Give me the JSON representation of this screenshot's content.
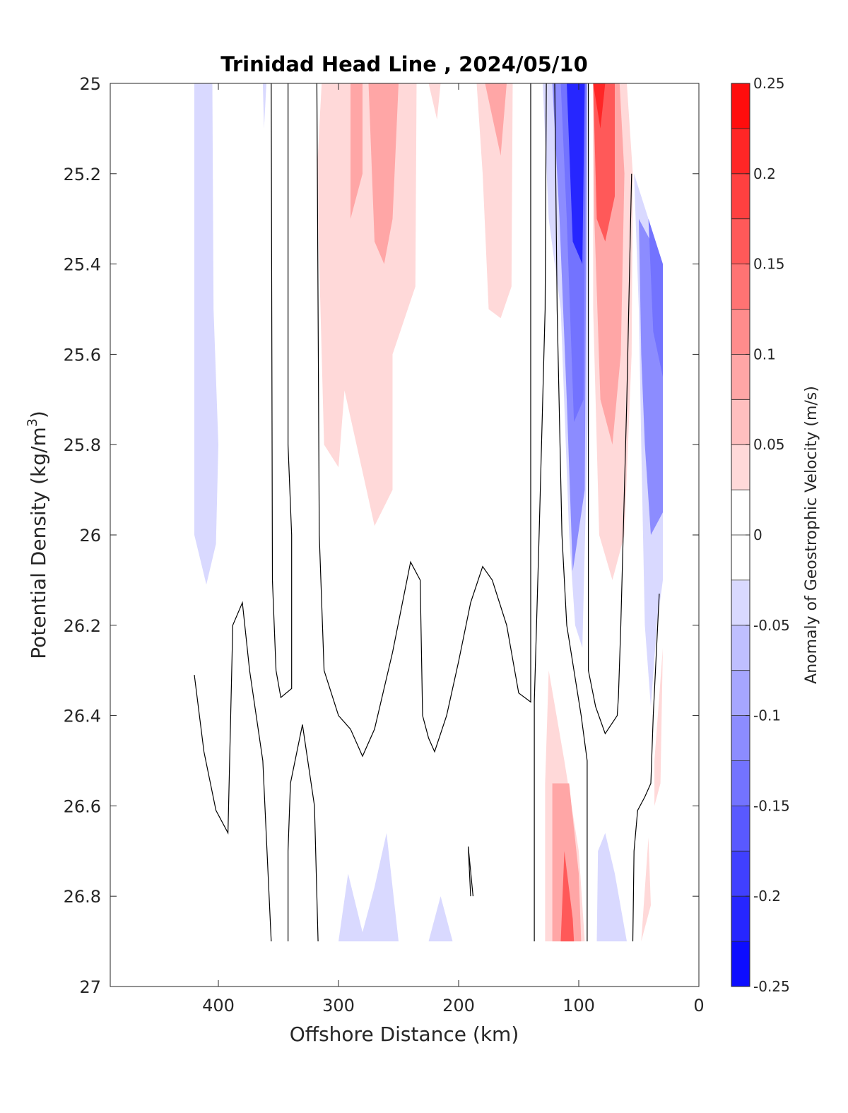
{
  "chart_data": {
    "type": "heatmap",
    "title": "Trinidad Head Line , 2024/05/10",
    "xlabel": "Offshore Distance (km)",
    "ylabel": "Potential Density (kg/m^3)",
    "ylabel_main": "Potential Density (kg/m",
    "ylabel_sup": "3",
    "ylabel_close": ")",
    "xlim": [
      490,
      0
    ],
    "ylim": [
      25,
      27
    ],
    "x_reversed": true,
    "y_reversed": true,
    "x_ticks": [
      400,
      300,
      200,
      100,
      0
    ],
    "x_tick_labels": [
      "400",
      "300",
      "200",
      "100",
      "0"
    ],
    "y_ticks": [
      25,
      25.2,
      25.4,
      25.6,
      25.8,
      26,
      26.2,
      26.4,
      26.6,
      26.8,
      27
    ],
    "y_tick_labels": [
      "25",
      "25.2",
      "25.4",
      "25.6",
      "25.8",
      "26",
      "26.2",
      "26.4",
      "26.6",
      "26.8",
      "27"
    ],
    "grid": false,
    "colorbar": {
      "label": "Anomaly of Geostrophic Velocity (m/s)",
      "range": [
        -0.25,
        0.25
      ],
      "levels": 20,
      "tick_values": [
        0.25,
        0.2,
        0.15,
        0.1,
        0.05,
        0,
        -0.05,
        -0.1,
        -0.15,
        -0.2,
        -0.25
      ],
      "tick_labels": [
        "0.25",
        "0.2",
        "0.15",
        "0.1",
        "0.05",
        "0",
        "-0.05",
        "-0.1",
        "-0.15",
        "-0.2",
        "-0.25"
      ],
      "colormap": "blue-white-red",
      "negative_color": "#0000ff",
      "positive_color": "#ff0000"
    },
    "features": [
      {
        "kind": "negative",
        "value": -0.04,
        "points": [
          [
            420,
            25
          ],
          [
            405,
            25
          ],
          [
            404,
            25.5
          ],
          [
            400,
            25.8
          ],
          [
            402,
            26.02
          ],
          [
            410,
            26.11
          ],
          [
            420,
            26.0
          ]
        ]
      },
      {
        "kind": "negative",
        "value": -0.04,
        "points": [
          [
            363,
            25
          ],
          [
            360,
            25
          ],
          [
            362,
            25.1
          ]
        ]
      },
      {
        "kind": "positive",
        "value": 0.04,
        "points": [
          [
            314,
            25
          ],
          [
            235,
            25
          ],
          [
            236,
            25.45
          ],
          [
            255,
            25.6
          ],
          [
            255,
            25.9
          ],
          [
            270,
            25.98
          ],
          [
            285,
            25.8
          ],
          [
            295,
            25.68
          ],
          [
            300,
            25.85
          ],
          [
            312,
            25.8
          ],
          [
            318,
            25.2
          ]
        ]
      },
      {
        "kind": "positive",
        "value": 0.08,
        "points": [
          [
            290,
            25
          ],
          [
            280,
            25
          ],
          [
            280,
            25.2
          ],
          [
            290,
            25.3
          ]
        ]
      },
      {
        "kind": "positive",
        "value": 0.08,
        "points": [
          [
            275,
            25
          ],
          [
            250,
            25
          ],
          [
            255,
            25.3
          ],
          [
            262,
            25.4
          ],
          [
            270,
            25.35
          ]
        ]
      },
      {
        "kind": "positive",
        "value": 0.04,
        "points": [
          [
            225,
            25
          ],
          [
            215,
            25
          ],
          [
            218,
            25.08
          ]
        ]
      },
      {
        "kind": "positive",
        "value": 0.04,
        "points": [
          [
            185,
            25
          ],
          [
            155,
            25
          ],
          [
            156,
            25.45
          ],
          [
            165,
            25.52
          ],
          [
            175,
            25.5
          ],
          [
            180,
            25.2
          ]
        ]
      },
      {
        "kind": "positive",
        "value": 0.08,
        "points": [
          [
            178,
            25
          ],
          [
            160,
            25
          ],
          [
            165,
            25.16
          ]
        ]
      },
      {
        "kind": "negative",
        "value": -0.05,
        "points": [
          [
            130,
            25
          ],
          [
            92,
            25
          ],
          [
            92,
            25.7
          ],
          [
            97,
            26.25
          ],
          [
            103,
            26.2
          ],
          [
            108,
            26.0
          ],
          [
            115,
            25.5
          ],
          [
            125,
            25.3
          ]
        ]
      },
      {
        "kind": "negative",
        "value": -0.1,
        "points": [
          [
            122,
            25
          ],
          [
            93,
            25
          ],
          [
            95,
            25.9
          ],
          [
            105,
            26.08
          ],
          [
            110,
            25.7
          ],
          [
            116,
            25.3
          ]
        ]
      },
      {
        "kind": "negative",
        "value": -0.15,
        "points": [
          [
            115,
            25
          ],
          [
            94,
            25
          ],
          [
            96,
            25.7
          ],
          [
            104,
            25.75
          ],
          [
            110,
            25.3
          ]
        ]
      },
      {
        "kind": "negative",
        "value": -0.2,
        "points": [
          [
            110,
            25
          ],
          [
            95,
            25
          ],
          [
            97,
            25.4
          ],
          [
            105,
            25.35
          ]
        ]
      },
      {
        "kind": "positive",
        "value": 0.05,
        "points": [
          [
            88,
            25
          ],
          [
            60,
            25
          ],
          [
            55,
            25.2
          ],
          [
            56,
            25.6
          ],
          [
            62,
            26.0
          ],
          [
            72,
            26.1
          ],
          [
            83,
            26.0
          ],
          [
            88,
            25.5
          ]
        ]
      },
      {
        "kind": "positive",
        "value": 0.1,
        "points": [
          [
            88,
            25
          ],
          [
            66,
            25
          ],
          [
            62,
            25.2
          ],
          [
            65,
            25.6
          ],
          [
            72,
            25.8
          ],
          [
            82,
            25.7
          ],
          [
            87,
            25.3
          ]
        ]
      },
      {
        "kind": "positive",
        "value": 0.15,
        "points": [
          [
            88,
            25
          ],
          [
            70,
            25
          ],
          [
            70,
            25.25
          ],
          [
            78,
            25.35
          ],
          [
            85,
            25.3
          ]
        ]
      },
      {
        "kind": "positive",
        "value": 0.2,
        "points": [
          [
            88,
            25
          ],
          [
            78,
            25
          ],
          [
            82,
            25.1
          ]
        ]
      },
      {
        "kind": "negative",
        "value": -0.05,
        "points": [
          [
            54,
            25.2
          ],
          [
            30,
            25.4
          ],
          [
            30,
            26.1
          ],
          [
            35,
            26.2
          ],
          [
            40,
            26.38
          ],
          [
            45,
            26.2
          ],
          [
            48,
            25.8
          ],
          [
            50,
            25.5
          ]
        ]
      },
      {
        "kind": "negative",
        "value": -0.1,
        "points": [
          [
            50,
            25.3
          ],
          [
            30,
            25.4
          ],
          [
            30,
            25.95
          ],
          [
            40,
            26.0
          ],
          [
            45,
            25.8
          ],
          [
            48,
            25.6
          ]
        ]
      },
      {
        "kind": "negative",
        "value": -0.15,
        "points": [
          [
            42,
            25.3
          ],
          [
            30,
            25.4
          ],
          [
            30,
            25.65
          ],
          [
            38,
            25.55
          ]
        ]
      },
      {
        "kind": "positive",
        "value": 0.04,
        "points": [
          [
            30,
            26.25
          ],
          [
            37,
            26.5
          ],
          [
            37,
            26.6
          ],
          [
            32,
            26.55
          ]
        ]
      },
      {
        "kind": "negative",
        "value": -0.04,
        "points": [
          [
            300,
            26.9
          ],
          [
            292,
            26.75
          ],
          [
            280,
            26.88
          ],
          [
            270,
            26.78
          ],
          [
            260,
            26.66
          ],
          [
            250,
            26.9
          ]
        ]
      },
      {
        "kind": "negative",
        "value": -0.04,
        "points": [
          [
            225,
            26.9
          ],
          [
            215,
            26.8
          ],
          [
            205,
            26.9
          ]
        ]
      },
      {
        "kind": "positive",
        "value": 0.05,
        "points": [
          [
            128,
            26.9
          ],
          [
            128,
            26.55
          ],
          [
            125,
            26.3
          ],
          [
            112,
            26.5
          ],
          [
            100,
            26.7
          ],
          [
            95,
            26.9
          ]
        ]
      },
      {
        "kind": "positive",
        "value": 0.1,
        "points": [
          [
            122,
            26.9
          ],
          [
            122,
            26.55
          ],
          [
            108,
            26.55
          ],
          [
            100,
            26.75
          ],
          [
            98,
            26.9
          ]
        ]
      },
      {
        "kind": "positive",
        "value": 0.15,
        "points": [
          [
            115,
            26.9
          ],
          [
            112,
            26.7
          ],
          [
            105,
            26.85
          ],
          [
            104,
            26.9
          ]
        ]
      },
      {
        "kind": "negative",
        "value": -0.04,
        "points": [
          [
            85,
            26.9
          ],
          [
            84,
            26.7
          ],
          [
            78,
            26.66
          ],
          [
            70,
            26.75
          ],
          [
            60,
            26.9
          ]
        ]
      },
      {
        "kind": "positive",
        "value": 0.04,
        "points": [
          [
            48,
            26.9
          ],
          [
            42,
            26.67
          ],
          [
            40,
            26.82
          ]
        ]
      }
    ],
    "contours_zero": [
      [
        [
          420,
          26.31
        ],
        [
          412,
          26.48
        ],
        [
          402,
          26.61
        ],
        [
          392,
          26.66
        ],
        [
          388,
          26.2
        ],
        [
          380,
          26.15
        ],
        [
          374,
          26.3
        ],
        [
          363,
          26.5
        ],
        [
          356,
          26.9
        ]
      ],
      [
        [
          356,
          25
        ],
        [
          355,
          26.1
        ],
        [
          352,
          26.3
        ],
        [
          348,
          26.36
        ],
        [
          339,
          26.34
        ],
        [
          339,
          26.0
        ],
        [
          342,
          25.8
        ],
        [
          342,
          25
        ],
        [
          342,
          25
        ]
      ],
      [
        [
          342,
          26.9
        ],
        [
          342,
          26.7
        ],
        [
          340,
          26.55
        ],
        [
          330,
          26.42
        ],
        [
          320,
          26.6
        ],
        [
          317,
          26.9
        ]
      ],
      [
        [
          318,
          25
        ],
        [
          316,
          26.0
        ],
        [
          312,
          26.3
        ],
        [
          300,
          26.4
        ],
        [
          290,
          26.43
        ],
        [
          280,
          26.49
        ],
        [
          270,
          26.43
        ],
        [
          255,
          26.26
        ],
        [
          243,
          26.1
        ],
        [
          240,
          26.06
        ],
        [
          232,
          26.1
        ],
        [
          230,
          26.4
        ],
        [
          225,
          26.45
        ],
        [
          220,
          26.48
        ],
        [
          210,
          26.4
        ],
        [
          200,
          26.28
        ],
        [
          190,
          26.15
        ],
        [
          180,
          26.07
        ],
        [
          172,
          26.1
        ],
        [
          160,
          26.2
        ],
        [
          150,
          26.35
        ],
        [
          140,
          26.37
        ],
        [
          140,
          25
        ],
        [
          140,
          25
        ]
      ],
      [
        [
          190,
          26.8
        ],
        [
          192,
          26.69
        ],
        [
          188,
          26.8
        ]
      ],
      [
        [
          137,
          26.9
        ],
        [
          137,
          26.37
        ],
        [
          133,
          26.0
        ],
        [
          130,
          25.7
        ],
        [
          128,
          25.5
        ],
        [
          127,
          25.0
        ]
      ],
      [
        [
          93,
          26.9
        ],
        [
          93,
          26.5
        ],
        [
          98,
          26.4
        ],
        [
          110,
          26.2
        ],
        [
          114,
          26.0
        ],
        [
          118,
          25.5
        ],
        [
          120,
          25.0
        ]
      ],
      [
        [
          92,
          25
        ],
        [
          92,
          26.3
        ],
        [
          86,
          26.38
        ],
        [
          78,
          26.44
        ],
        [
          68,
          26.4
        ],
        [
          67,
          26.36
        ],
        [
          65,
          26.2
        ],
        [
          60,
          25.7
        ],
        [
          56,
          25.2
        ]
      ],
      [
        [
          55,
          26.9
        ],
        [
          54,
          26.7
        ],
        [
          51,
          26.61
        ],
        [
          45,
          26.58
        ],
        [
          40,
          26.55
        ],
        [
          38,
          26.4
        ],
        [
          33,
          26.13
        ]
      ]
    ]
  }
}
